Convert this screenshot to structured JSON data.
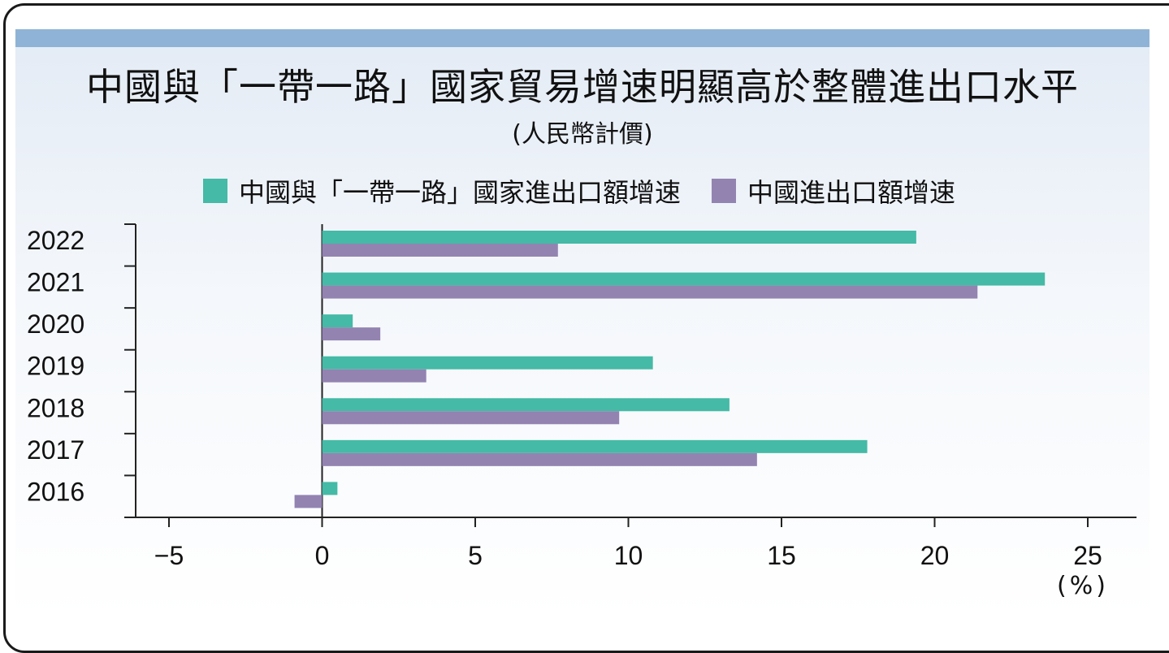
{
  "chart_data": {
    "type": "bar",
    "orientation": "horizontal",
    "title": "中國與「一帶一路」國家貿易增速明顯高於整體進出口水平",
    "subtitle": "(人民幣計價)",
    "unit_label": "(%)",
    "categories": [
      "2022",
      "2021",
      "2020",
      "2019",
      "2018",
      "2017",
      "2016"
    ],
    "series": [
      {
        "name": "中國與「一帶一路」國家進出口額增速",
        "color": "#45baa6",
        "values": [
          19.4,
          23.6,
          1.0,
          10.8,
          13.3,
          17.8,
          0.5
        ]
      },
      {
        "name": "中國進出口額增速",
        "color": "#9383b1",
        "values": [
          7.7,
          21.4,
          1.9,
          3.4,
          9.7,
          14.2,
          -0.9
        ]
      }
    ],
    "xlim": [
      -6,
      26.8
    ],
    "xticks": [
      -5,
      0,
      5,
      10,
      15,
      20,
      25
    ],
    "xtick_labels": [
      "−5",
      "0",
      "5",
      "10",
      "15",
      "20",
      "25"
    ],
    "grid": false,
    "legend_position": "top"
  }
}
